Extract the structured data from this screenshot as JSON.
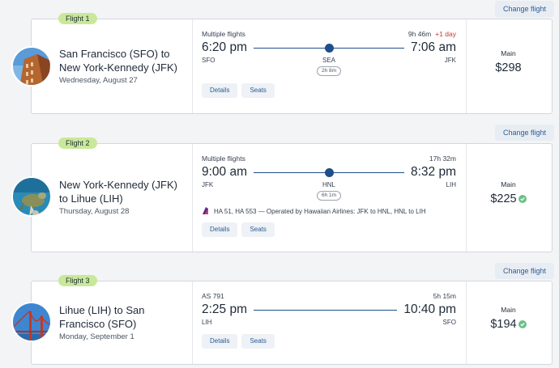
{
  "change_label": "Change flight",
  "flights": [
    {
      "label": "Flight 1",
      "route": "San Francisco (SFO) to New York-Kennedy (JFK)",
      "date": "Wednesday, August 27",
      "type": "Multiple flights",
      "duration": "9h 46m",
      "plus_day": "+1 day",
      "depart_time": "6:20 pm",
      "arrive_time": "7:06 am",
      "from": "SFO",
      "stop": "SEA",
      "to": "JFK",
      "layover": "2h 8m",
      "details": "Details",
      "seats": "Seats",
      "fare": "Main",
      "price": "$298"
    },
    {
      "label": "Flight 2",
      "route": "New York-Kennedy (JFK) to Lihue (LIH)",
      "date": "Thursday, August 28",
      "type": "Multiple flights",
      "duration": "17h 32m",
      "depart_time": "9:00 am",
      "arrive_time": "8:32 pm",
      "from": "JFK",
      "stop": "HNL",
      "to": "LIH",
      "layover": "6h 1m",
      "operated": "HA 51, HA 553 — Operated by Hawaiian Airlines: JFK to HNL, HNL to LIH",
      "details": "Details",
      "seats": "Seats",
      "fare": "Main",
      "price": "$225"
    },
    {
      "label": "Flight 3",
      "route": "Lihue (LIH) to San Francisco (SFO)",
      "date": "Monday, September 1",
      "type": "AS 791",
      "duration": "5h 15m",
      "depart_time": "2:25 pm",
      "arrive_time": "10:40 pm",
      "from": "LIH",
      "to": "SFO",
      "details": "Details",
      "seats": "Seats",
      "fare": "Main",
      "price": "$194"
    }
  ],
  "colors": {
    "accent": "#1f4e8a",
    "badge": "#6cc08a",
    "label_bg": "#c9e99a",
    "plus_day": "#c0392b"
  },
  "icons": {
    "badge": "green-check-badge-icon",
    "airline": "hawaiian-airlines-logo-icon"
  }
}
